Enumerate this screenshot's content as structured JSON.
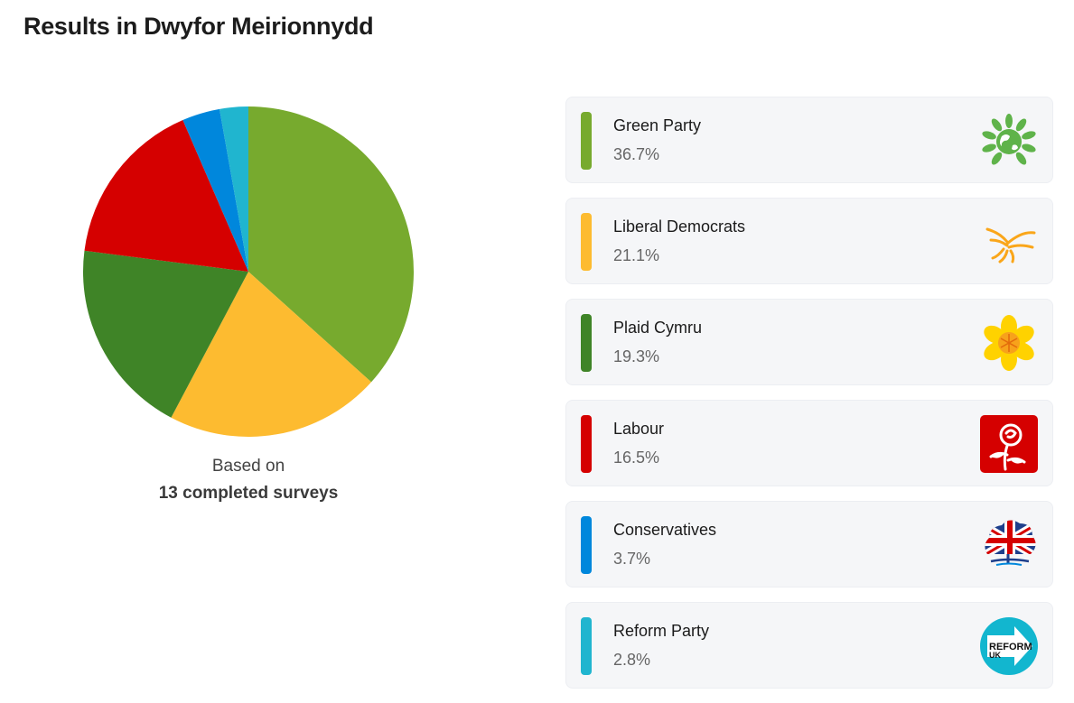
{
  "title": "Results in Dwyfor Meirionnydd",
  "caption": {
    "line1": "Based on",
    "line2": "13 completed surveys"
  },
  "chart_data": {
    "type": "pie",
    "categories": [
      "Green Party",
      "Liberal Democrats",
      "Plaid Cymru",
      "Labour",
      "Conservatives",
      "Reform Party"
    ],
    "values": [
      36.7,
      21.1,
      19.3,
      16.5,
      3.7,
      2.8
    ],
    "value_labels": [
      "36.7%",
      "21.1%",
      "19.3%",
      "16.5%",
      "3.7%",
      "2.8%"
    ],
    "colors": [
      "#77aa2e",
      "#fdbb30",
      "#3f8427",
      "#d50000",
      "#0087dc",
      "#20b5cf"
    ],
    "start": "top, clockwise"
  },
  "parties": [
    {
      "name": "Green Party",
      "pct": "36.7%",
      "color": "#77aa2e",
      "logo": "green-party-logo"
    },
    {
      "name": "Liberal Democrats",
      "pct": "21.1%",
      "color": "#fdbb30",
      "logo": "liberal-democrats-logo"
    },
    {
      "name": "Plaid Cymru",
      "pct": "19.3%",
      "color": "#3f8427",
      "logo": "plaid-cymru-logo"
    },
    {
      "name": "Labour",
      "pct": "16.5%",
      "color": "#d50000",
      "logo": "labour-rose-logo"
    },
    {
      "name": "Conservatives",
      "pct": "3.7%",
      "color": "#0087dc",
      "logo": "conservatives-tree-logo"
    },
    {
      "name": "Reform Party",
      "pct": "2.8%",
      "color": "#20b5cf",
      "logo": "reform-uk-logo",
      "logo_text": [
        "REFORM",
        "UK"
      ]
    }
  ]
}
